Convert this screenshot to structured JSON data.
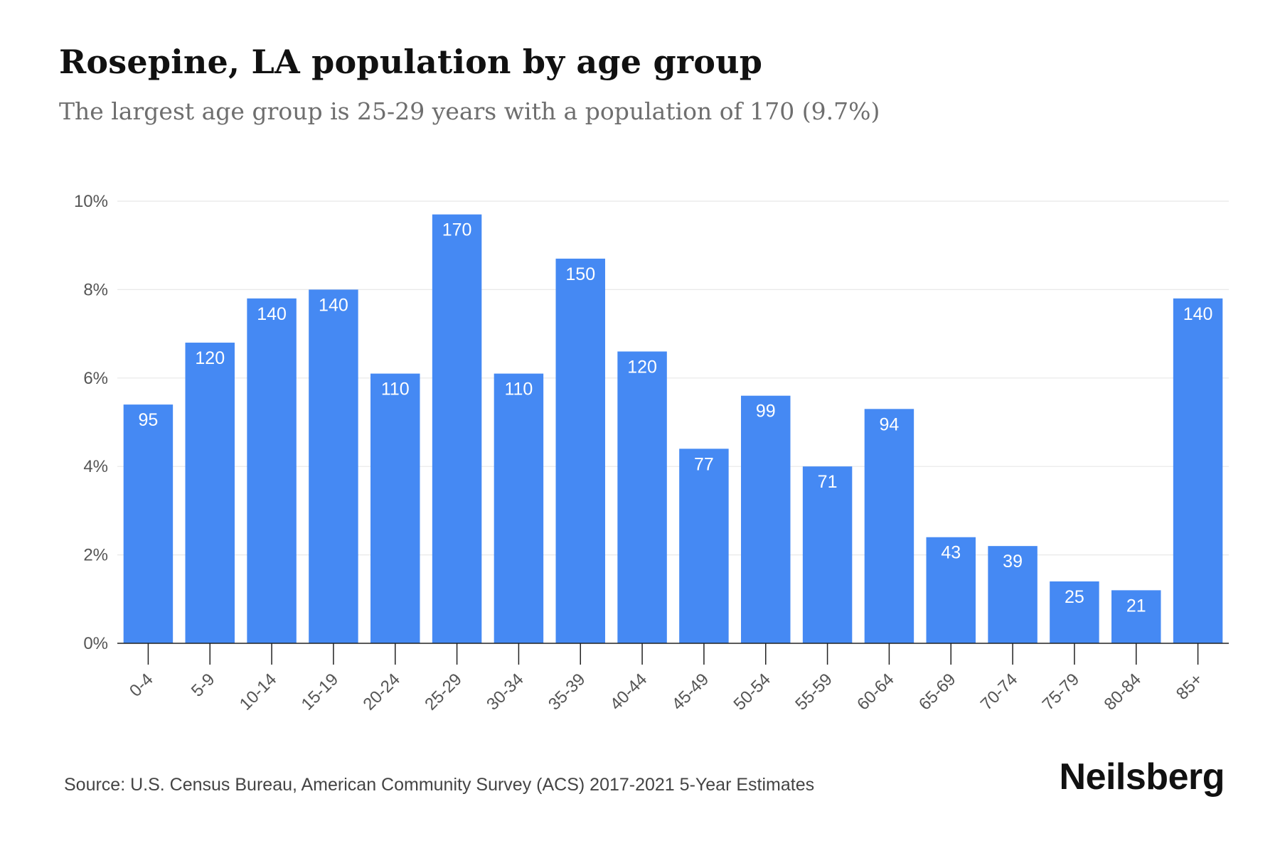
{
  "header": {
    "title": "Rosepine, LA population by age group",
    "subtitle": "The largest age group is 25-29 years with a population of 170 (9.7%)"
  },
  "footer": {
    "source": "Source: U.S. Census Bureau, American Community Survey (ACS) 2017-2021 5-Year Estimates",
    "brand": "Neilsberg"
  },
  "colors": {
    "bar": "#4589f3",
    "grid": "#e8e8e8",
    "axis": "#222222"
  },
  "chart_data": {
    "type": "bar",
    "title": "Rosepine, LA population by age group",
    "subtitle": "The largest age group is 25-29 years with a population of 170 (9.7%)",
    "xlabel": "",
    "ylabel": "",
    "ylim": [
      0,
      10
    ],
    "yticks": [
      0,
      2,
      4,
      6,
      8,
      10
    ],
    "ytick_labels": [
      "0%",
      "2%",
      "4%",
      "6%",
      "8%",
      "10%"
    ],
    "grid": true,
    "legend": "none",
    "categories": [
      "0-4",
      "5-9",
      "10-14",
      "15-19",
      "20-24",
      "25-29",
      "30-34",
      "35-39",
      "40-44",
      "45-49",
      "50-54",
      "55-59",
      "60-64",
      "65-69",
      "70-74",
      "75-79",
      "80-84",
      "85+"
    ],
    "percent": [
      5.4,
      6.8,
      7.8,
      8.0,
      6.1,
      9.7,
      6.1,
      8.7,
      6.6,
      4.4,
      5.6,
      4.0,
      5.3,
      2.4,
      2.2,
      1.4,
      1.2,
      7.8
    ],
    "values": [
      95,
      120,
      140,
      140,
      110,
      170,
      110,
      150,
      120,
      77,
      99,
      71,
      94,
      43,
      39,
      25,
      21,
      140
    ],
    "bar_labels": [
      "95",
      "120",
      "140",
      "140",
      "110",
      "170",
      "110",
      "150",
      "120",
      "77",
      "99",
      "71",
      "94",
      "43",
      "39",
      "25",
      "21",
      "140"
    ]
  }
}
